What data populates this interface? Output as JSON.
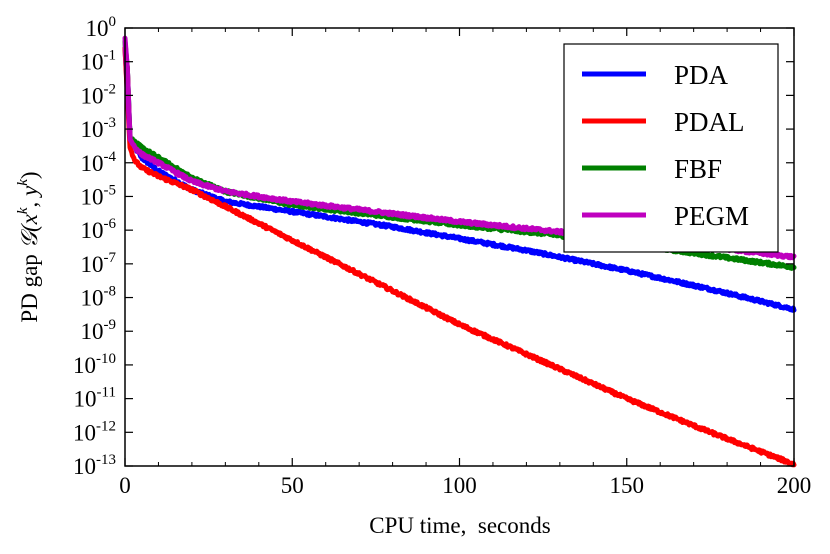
{
  "chart_data": {
    "type": "line",
    "title": "",
    "xlabel": "CPU time,  seconds",
    "ylabel": {
      "prefix": "PD gap ",
      "func": "𝒢(",
      "x": "x",
      "sup1": "k",
      "sep": ", ",
      "y": "y",
      "sup2": "k",
      "close": ")"
    },
    "xlim": [
      0,
      200
    ],
    "ylim_log10": [
      -13,
      0
    ],
    "yscale": "log",
    "x_ticks": [
      0,
      50,
      100,
      150,
      200
    ],
    "x_tick_labels": [
      "0",
      "50",
      "100",
      "150",
      "200"
    ],
    "y_ticks": [
      {
        "base": "10",
        "exp": "0"
      },
      {
        "base": "10",
        "exp": "-1"
      },
      {
        "base": "10",
        "exp": "-2"
      },
      {
        "base": "10",
        "exp": "-3"
      },
      {
        "base": "10",
        "exp": "-4"
      },
      {
        "base": "10",
        "exp": "-5"
      },
      {
        "base": "10",
        "exp": "-6"
      },
      {
        "base": "10",
        "exp": "-7"
      },
      {
        "base": "10",
        "exp": "-8"
      },
      {
        "base": "10",
        "exp": "-9"
      },
      {
        "base": "10",
        "exp": "-10"
      },
      {
        "base": "10",
        "exp": "-11"
      },
      {
        "base": "10",
        "exp": "-12"
      },
      {
        "base": "10",
        "exp": "-13"
      }
    ],
    "legend_position": "top-right",
    "grid": false,
    "series": [
      {
        "name": "PDA",
        "color": "#0000ff",
        "x": [
          0,
          0.7,
          1.5,
          3,
          5,
          10,
          20,
          30,
          40,
          50,
          60,
          80,
          100,
          120,
          150,
          175,
          200
        ],
        "log10_y": [
          -0.6,
          -1.2,
          -3.3,
          -3.55,
          -3.85,
          -4.25,
          -4.8,
          -5.15,
          -5.3,
          -5.45,
          -5.6,
          -5.9,
          -6.25,
          -6.6,
          -7.2,
          -7.75,
          -8.35
        ]
      },
      {
        "name": "PDAL",
        "color": "#ff0000",
        "x": [
          0,
          0.7,
          1.5,
          3,
          5,
          10,
          20,
          30,
          50,
          75,
          100,
          125,
          150,
          175,
          200
        ],
        "log10_y": [
          -0.6,
          -1.2,
          -3.55,
          -3.95,
          -4.15,
          -4.4,
          -4.8,
          -5.3,
          -6.3,
          -7.55,
          -8.8,
          -9.9,
          -11.0,
          -12.0,
          -12.95
        ]
      },
      {
        "name": "FBF",
        "color": "#008000",
        "x": [
          0,
          0.7,
          1.5,
          3,
          5,
          10,
          20,
          30,
          50,
          75,
          100,
          125,
          150,
          175,
          200
        ],
        "log10_y": [
          -0.4,
          -1.2,
          -3.25,
          -3.4,
          -3.55,
          -3.85,
          -4.45,
          -4.85,
          -5.25,
          -5.55,
          -5.85,
          -6.1,
          -6.4,
          -6.75,
          -7.1
        ]
      },
      {
        "name": "PEGM",
        "color": "#bf00bf",
        "x": [
          0,
          0.7,
          1.5,
          3,
          5,
          10,
          20,
          30,
          50,
          75,
          100,
          125,
          150,
          175,
          200
        ],
        "log10_y": [
          -0.3,
          -1.2,
          -3.3,
          -3.55,
          -3.75,
          -4.0,
          -4.55,
          -4.85,
          -5.15,
          -5.45,
          -5.75,
          -6.0,
          -6.25,
          -6.5,
          -6.8
        ]
      }
    ]
  }
}
